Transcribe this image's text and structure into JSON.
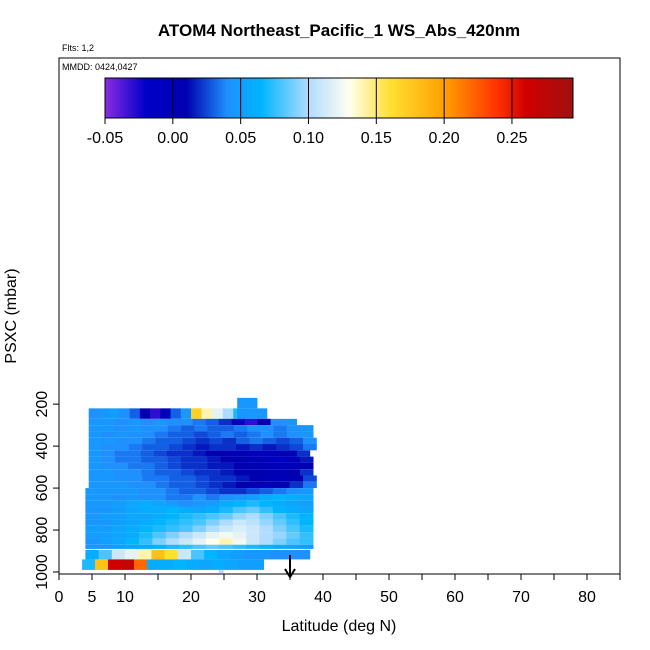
{
  "chart_data": {
    "type": "heatmap",
    "title": "ATOM4 Northeast_Pacific_1 WS_Abs_420nm",
    "flights_label": "Flts: 1,2",
    "mmdd_label": "MMDD: 0424,0427",
    "xlabel": "Latitude (deg N)",
    "ylabel": "PSXC (mbar)",
    "xlim": [
      0,
      85
    ],
    "ylim": [
      1000,
      0
    ],
    "x_ticks": [
      0,
      5,
      10,
      20,
      30,
      40,
      50,
      60,
      70,
      80
    ],
    "x_minor_ticks": [
      15,
      25,
      35,
      45,
      55,
      65,
      75,
      85
    ],
    "y_ticks": [
      200,
      400,
      600,
      800,
      1000
    ],
    "colorbar": {
      "range": [
        -0.05,
        0.295
      ],
      "ticks": [
        "-0.05",
        "0.00",
        "0.05",
        "0.10",
        "0.15",
        "0.20",
        "0.25"
      ],
      "tick_values": [
        -0.05,
        0.0,
        0.05,
        0.1,
        0.15,
        0.2,
        0.25
      ],
      "color_stops": [
        {
          "v": -0.05,
          "c": "#8a2be2"
        },
        {
          "v": -0.02,
          "c": "#0000c8"
        },
        {
          "v": 0.01,
          "c": "#0000b0"
        },
        {
          "v": 0.04,
          "c": "#1e90ff"
        },
        {
          "v": 0.065,
          "c": "#00b4ff"
        },
        {
          "v": 0.1,
          "c": "#b0dcff"
        },
        {
          "v": 0.13,
          "c": "#fffff0"
        },
        {
          "v": 0.16,
          "c": "#ffe033"
        },
        {
          "v": 0.2,
          "c": "#ffa000"
        },
        {
          "v": 0.24,
          "c": "#ff3000"
        },
        {
          "v": 0.26,
          "c": "#d00000"
        },
        {
          "v": 0.295,
          "c": "#a01010"
        }
      ]
    },
    "bands": [
      {
        "p_top": 170,
        "p_bot": 220,
        "segments": [
          {
            "x0": 27.0,
            "x1": 30.0,
            "values": [
              0.045
            ]
          }
        ]
      },
      {
        "p_top": 220,
        "p_bot": 270,
        "segments": [
          {
            "x0": 4.5,
            "x1": 20.0,
            "values": [
              0.04,
              0.045,
              0.05,
              0.04,
              0.03,
              0.01,
              -0.03,
              0.0,
              0.03,
              0.045
            ]
          },
          {
            "x0": 20.0,
            "x1": 28.0,
            "values": [
              0.17,
              0.14,
              0.12,
              0.1,
              0.07
            ]
          },
          {
            "x0": 27.0,
            "x1": 31.5,
            "values": [
              0.045
            ]
          }
        ]
      },
      {
        "p_top": 270,
        "p_bot": 300,
        "segments": [
          {
            "x0": 4.5,
            "x1": 36.0,
            "values": [
              0.045,
              0.045,
              0.04,
              0.045,
              0.04,
              0.045,
              0.04,
              0.04,
              0.035,
              0.03,
              0.02,
              -0.01,
              -0.03,
              0.01,
              0.04,
              0.045
            ]
          }
        ]
      },
      {
        "p_top": 300,
        "p_bot": 330,
        "segments": [
          {
            "x0": 4.5,
            "x1": 38.5,
            "values": [
              0.045,
              0.045,
              0.04,
              0.045,
              0.04,
              0.04,
              0.035,
              0.03,
              0.035,
              0.03,
              0.03,
              0.035,
              0.04,
              0.04,
              0.035,
              0.04,
              0.045
            ]
          }
        ]
      },
      {
        "p_top": 330,
        "p_bot": 360,
        "segments": [
          {
            "x0": 4.5,
            "x1": 38.5,
            "values": [
              0.045,
              0.04,
              0.045,
              0.04,
              0.04,
              0.035,
              0.03,
              0.03,
              0.025,
              0.03,
              0.035,
              0.03,
              0.035,
              0.04,
              0.035,
              0.04,
              0.045
            ]
          }
        ]
      },
      {
        "p_top": 360,
        "p_bot": 390,
        "segments": [
          {
            "x0": 4.5,
            "x1": 39.0,
            "values": [
              0.045,
              0.045,
              0.04,
              0.04,
              0.035,
              0.03,
              0.03,
              0.025,
              0.02,
              0.025,
              0.02,
              0.03,
              0.035,
              0.03,
              0.025,
              0.03,
              0.04
            ]
          }
        ]
      },
      {
        "p_top": 390,
        "p_bot": 420,
        "segments": [
          {
            "x0": 4.5,
            "x1": 39.0,
            "values": [
              0.045,
              0.04,
              0.04,
              0.035,
              0.03,
              0.03,
              0.025,
              0.02,
              0.015,
              0.02,
              0.02,
              0.015,
              0.02,
              0.015,
              0.02,
              0.025,
              0.035
            ]
          }
        ]
      },
      {
        "p_top": 420,
        "p_bot": 450,
        "segments": [
          {
            "x0": 4.5,
            "x1": 38.0,
            "values": [
              0.045,
              0.04,
              0.035,
              0.035,
              0.03,
              0.025,
              0.02,
              0.02,
              0.015,
              0.01,
              0.01,
              0.005,
              0.0,
              -0.005,
              0.0,
              0.005,
              0.02
            ]
          }
        ]
      },
      {
        "p_top": 450,
        "p_bot": 480,
        "segments": [
          {
            "x0": 4.5,
            "x1": 38.5,
            "values": [
              0.045,
              0.04,
              0.035,
              0.035,
              0.03,
              0.03,
              0.025,
              0.02,
              0.02,
              0.015,
              0.01,
              0.01,
              0.005,
              0.0,
              -0.01,
              0.0,
              0.015
            ]
          }
        ]
      },
      {
        "p_top": 480,
        "p_bot": 510,
        "segments": [
          {
            "x0": 4.5,
            "x1": 38.5,
            "values": [
              0.045,
              0.04,
              0.04,
              0.035,
              0.035,
              0.03,
              0.025,
              0.02,
              0.02,
              0.015,
              0.015,
              0.01,
              0.005,
              0.0,
              -0.005,
              0.0,
              0.01
            ]
          }
        ]
      },
      {
        "p_top": 510,
        "p_bot": 540,
        "segments": [
          {
            "x0": 4.5,
            "x1": 38.5,
            "values": [
              0.045,
              0.045,
              0.04,
              0.04,
              0.035,
              0.03,
              0.03,
              0.025,
              0.02,
              0.02,
              0.015,
              0.01,
              0.01,
              0.005,
              0.0,
              0.01,
              0.02
            ]
          }
        ]
      },
      {
        "p_top": 540,
        "p_bot": 570,
        "segments": [
          {
            "x0": 4.5,
            "x1": 39.0,
            "values": [
              0.045,
              0.045,
              0.04,
              0.04,
              0.035,
              0.035,
              0.03,
              0.03,
              0.025,
              0.02,
              0.02,
              0.015,
              0.01,
              0.005,
              0.0,
              0.01,
              0.025
            ]
          }
        ]
      },
      {
        "p_top": 570,
        "p_bot": 600,
        "segments": [
          {
            "x0": 4.5,
            "x1": 39.0,
            "values": [
              0.045,
              0.045,
              0.045,
              0.04,
              0.04,
              0.035,
              0.03,
              0.03,
              0.025,
              0.02,
              0.015,
              0.01,
              0.005,
              0.0,
              0.005,
              0.02,
              0.035
            ]
          }
        ]
      },
      {
        "p_top": 600,
        "p_bot": 630,
        "segments": [
          {
            "x0": 4.0,
            "x1": 38.5,
            "values": [
              0.045,
              0.045,
              0.045,
              0.045,
              0.04,
              0.04,
              0.035,
              0.03,
              0.03,
              0.025,
              0.02,
              0.02,
              0.025,
              0.03,
              0.035,
              0.04,
              0.045
            ]
          }
        ]
      },
      {
        "p_top": 630,
        "p_bot": 660,
        "segments": [
          {
            "x0": 4.0,
            "x1": 38.5,
            "values": [
              0.045,
              0.045,
              0.04,
              0.045,
              0.04,
              0.04,
              0.035,
              0.035,
              0.04,
              0.035,
              0.04,
              0.045,
              0.05,
              0.06,
              0.065,
              0.06,
              0.055
            ]
          }
        ]
      },
      {
        "p_top": 660,
        "p_bot": 690,
        "segments": [
          {
            "x0": 4.0,
            "x1": 38.5,
            "values": [
              0.045,
              0.045,
              0.05,
              0.055,
              0.06,
              0.055,
              0.05,
              0.04,
              0.045,
              0.05,
              0.06,
              0.065,
              0.07,
              0.065,
              0.06,
              0.055,
              0.05
            ]
          }
        ]
      },
      {
        "p_top": 690,
        "p_bot": 720,
        "segments": [
          {
            "x0": 4.0,
            "x1": 38.5,
            "values": [
              0.045,
              0.045,
              0.05,
              0.055,
              0.06,
              0.06,
              0.065,
              0.06,
              0.055,
              0.06,
              0.07,
              0.08,
              0.085,
              0.075,
              0.065,
              0.06,
              0.055
            ]
          }
        ]
      },
      {
        "p_top": 720,
        "p_bot": 750,
        "segments": [
          {
            "x0": 4.0,
            "x1": 38.5,
            "values": [
              0.045,
              0.05,
              0.05,
              0.055,
              0.055,
              0.06,
              0.065,
              0.07,
              0.075,
              0.08,
              0.085,
              0.095,
              0.1,
              0.09,
              0.08,
              0.07,
              0.065
            ]
          }
        ]
      },
      {
        "p_top": 750,
        "p_bot": 780,
        "segments": [
          {
            "x0": 4.0,
            "x1": 38.5,
            "values": [
              0.045,
              0.045,
              0.05,
              0.055,
              0.06,
              0.065,
              0.07,
              0.075,
              0.08,
              0.09,
              0.1,
              0.11,
              0.105,
              0.095,
              0.085,
              0.075,
              0.065
            ]
          }
        ]
      },
      {
        "p_top": 780,
        "p_bot": 810,
        "segments": [
          {
            "x0": 4.0,
            "x1": 38.5,
            "values": [
              0.05,
              0.05,
              0.055,
              0.06,
              0.065,
              0.07,
              0.075,
              0.08,
              0.09,
              0.1,
              0.11,
              0.115,
              0.11,
              0.1,
              0.09,
              0.08,
              0.07
            ]
          }
        ]
      },
      {
        "p_top": 810,
        "p_bot": 840,
        "segments": [
          {
            "x0": 4.0,
            "x1": 38.5,
            "values": [
              0.05,
              0.05,
              0.055,
              0.06,
              0.07,
              0.08,
              0.09,
              0.1,
              0.11,
              0.12,
              0.125,
              0.12,
              0.11,
              0.1,
              0.095,
              0.085,
              0.075
            ]
          }
        ]
      },
      {
        "p_top": 840,
        "p_bot": 870,
        "segments": [
          {
            "x0": 4.0,
            "x1": 38.5,
            "values": [
              0.045,
              0.05,
              0.055,
              0.065,
              0.075,
              0.09,
              0.1,
              0.11,
              0.12,
              0.13,
              0.14,
              0.125,
              0.11,
              0.1,
              0.09,
              0.08,
              0.075
            ]
          }
        ]
      },
      {
        "p_top": 870,
        "p_bot": 890,
        "segments": [
          {
            "x0": 4.0,
            "x1": 38.5,
            "values": [
              0.045,
              0.045,
              0.05,
              0.055,
              0.06,
              0.065,
              0.07,
              0.075,
              0.08,
              0.085,
              0.08,
              0.075,
              0.07,
              0.065,
              0.06,
              0.055,
              0.05
            ]
          }
        ]
      },
      {
        "p_top": 895,
        "p_bot": 940,
        "segments": [
          {
            "x0": 4.0,
            "x1": 38.0,
            "values": [
              0.06,
              0.08,
              0.11,
              0.12,
              0.14,
              0.18,
              0.16,
              0.11,
              0.08,
              0.065,
              0.055,
              0.05,
              0.045,
              0.045,
              0.04,
              0.04,
              0.04
            ]
          }
        ]
      },
      {
        "p_top": 940,
        "p_bot": 990,
        "segments": [
          {
            "x0": 3.5,
            "x1": 31.0,
            "values": [
              0.07,
              0.18,
              0.26,
              0.27,
              0.22,
              0.06,
              0.06,
              0.065,
              0.06,
              0.055,
              0.06,
              0.055,
              0.05,
              0.05
            ]
          }
        ]
      },
      {
        "p_top": 990,
        "p_bot": 1005,
        "segments": [
          {
            "x0": 24.2,
            "x1": 24.9,
            "values": [
              0.1
            ]
          }
        ]
      }
    ],
    "marker": {
      "type": "arrow",
      "x": 35,
      "points_to": "down"
    }
  }
}
